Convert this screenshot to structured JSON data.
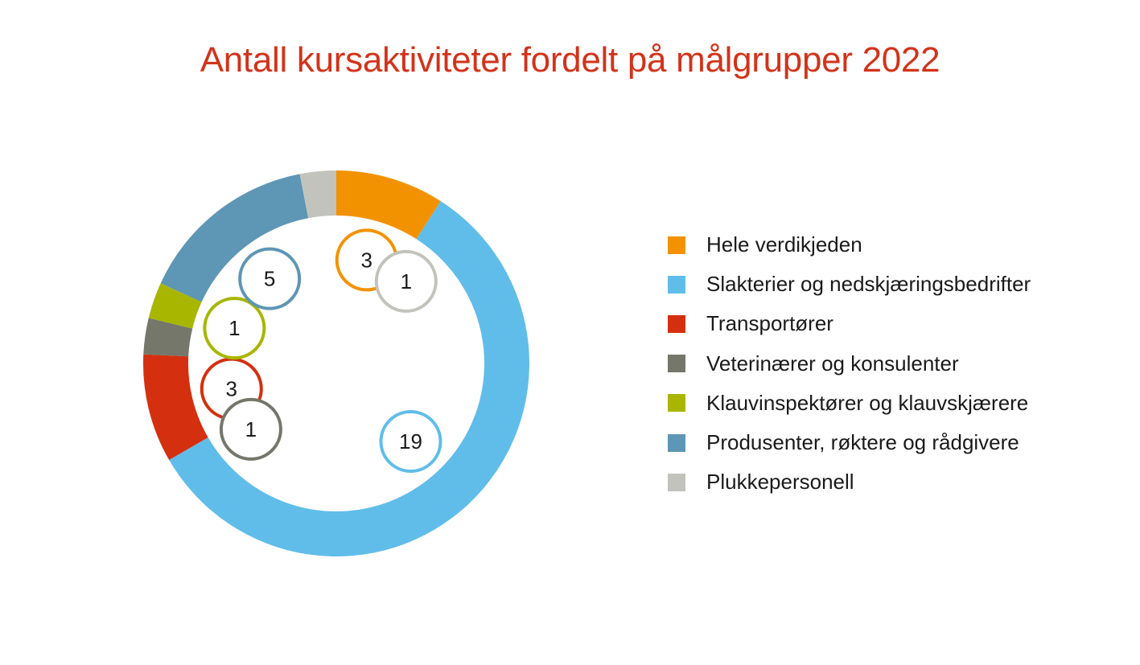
{
  "chart_data": {
    "type": "pie",
    "variant": "donut",
    "title": "Antall kursaktiviteter fordelt på målgrupper 2022",
    "legend_position": "right",
    "slices": [
      {
        "name": "Hele verdikjeden",
        "value": 3,
        "color": "#f39200"
      },
      {
        "name": "Slakterier og nedskjæringsbedrifter",
        "value": 19,
        "color": "#60bdea"
      },
      {
        "name": "Transportører",
        "value": 3,
        "color": "#d4300f"
      },
      {
        "name": "Veterinærer og konsulenter",
        "value": 1,
        "color": "#74776a"
      },
      {
        "name": "Klauvinspektører og klauvskjærere",
        "value": 1,
        "color": "#a9b600"
      },
      {
        "name": "Produsenter, røktere og rådgivere",
        "value": 5,
        "color": "#5e96b5"
      },
      {
        "name": "Plukkepersonell",
        "value": 1,
        "color": "#c3c3bd"
      }
    ],
    "legend_order": [
      0,
      1,
      2,
      3,
      4,
      5,
      6
    ]
  }
}
